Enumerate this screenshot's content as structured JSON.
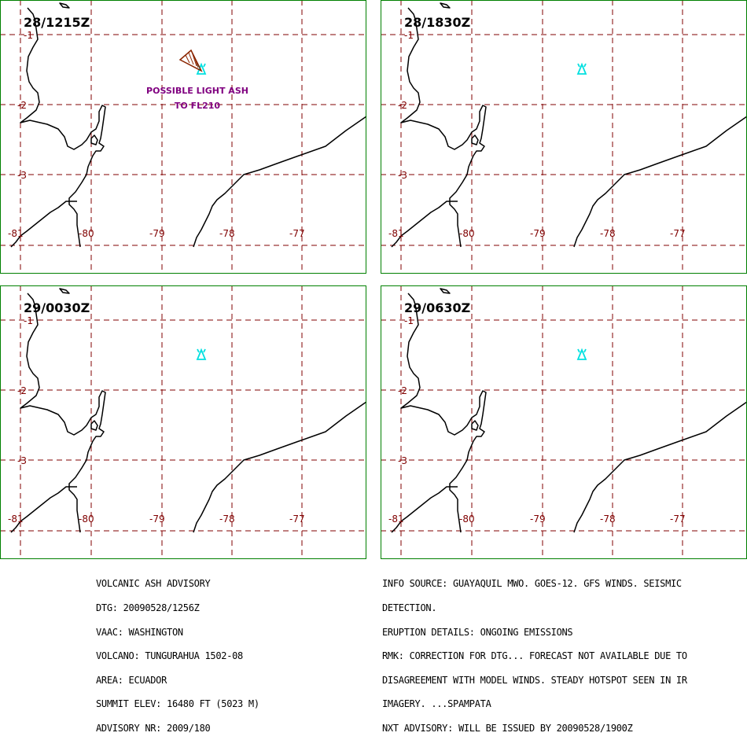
{
  "colors": {
    "border": "#008000",
    "grid": "#800000",
    "coast": "#000000",
    "volcano": "#00e0e0",
    "ash_outline": "#8b2500",
    "ash_label": "#800080"
  },
  "grid_labels": {
    "lon": [
      "-81",
      "-80",
      "-79",
      "-78",
      "-77"
    ],
    "lat": [
      "-1",
      "-2",
      "-3"
    ]
  },
  "panels": [
    {
      "time": "28/1215Z",
      "ash": {
        "label_line1": "POSSIBLE LIGHT ASH",
        "label_line2": "TO FL210"
      }
    },
    {
      "time": "28/1830Z"
    },
    {
      "time": "29/0030Z"
    },
    {
      "time": "29/0630Z"
    }
  ],
  "advisory_left": [
    "VOLCANIC ASH ADVISORY",
    "DTG: 20090528/1256Z",
    "VAAC: WASHINGTON",
    "VOLCANO: TUNGURAHUA 1502-08",
    "AREA: ECUADOR",
    "SUMMIT ELEV: 16480 FT (5023 M)",
    "ADVISORY NR: 2009/180"
  ],
  "advisory_right": [
    "INFO SOURCE: GUAYAQUIL MWO. GOES-12. GFS WINDS. SEISMIC",
    "DETECTION.",
    "ERUPTION DETAILS: ONGOING EMISSIONS",
    "RMK: CORRECTION FOR DTG... FORECAST NOT AVAILABLE DUE TO",
    "DISAGREEMENT WITH MODEL WINDS. STEADY HOTSPOT SEEN IN IR",
    "IMAGERY. ...SPAMPATA",
    "NXT ADVISORY: WILL BE ISSUED BY 20090528/1900Z"
  ]
}
